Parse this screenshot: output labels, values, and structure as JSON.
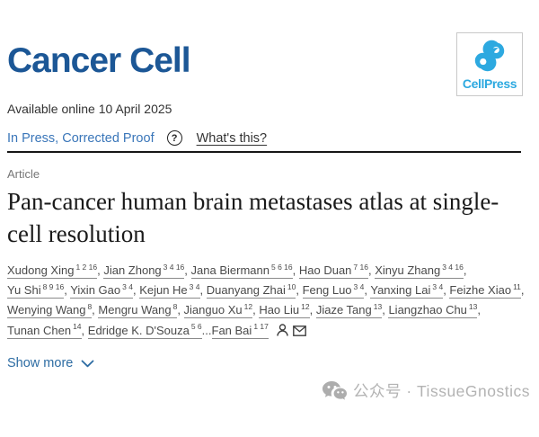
{
  "journal": {
    "name": "Cancer Cell",
    "logo_text": "CellPress"
  },
  "meta": {
    "available_online": "Available online 10 April 2025",
    "status_link": "In Press, Corrected Proof",
    "help_icon": "?",
    "whats_this": "What's this?"
  },
  "article": {
    "type_label": "Article",
    "title": "Pan-cancer human brain metastases atlas at single-cell resolution"
  },
  "authors": {
    "list": [
      {
        "name": "Xudong Xing",
        "sup": "1 2 16",
        "sep": ", "
      },
      {
        "name": "Jian Zhong",
        "sup": "3 4 16",
        "sep": ", "
      },
      {
        "name": "Jana Biermann",
        "sup": "5 6 16",
        "sep": ", "
      },
      {
        "name": "Hao Duan",
        "sup": "7 16",
        "sep": ", "
      },
      {
        "name": "Xinyu Zhang",
        "sup": "3 4 16",
        "sep": ", "
      },
      {
        "name": "Yu Shi",
        "sup": "8 9 16",
        "sep": ", "
      },
      {
        "name": "Yixin Gao",
        "sup": "3 4",
        "sep": ", "
      },
      {
        "name": "Kejun He",
        "sup": "3 4",
        "sep": ", "
      },
      {
        "name": "Duanyang Zhai",
        "sup": "10",
        "sep": ", "
      },
      {
        "name": "Feng Luo",
        "sup": "3 4",
        "sep": ", "
      },
      {
        "name": "Yanxing Lai",
        "sup": "3 4",
        "sep": ", "
      },
      {
        "name": "Feizhe Xiao",
        "sup": "11",
        "sep": ", "
      },
      {
        "name": "Wenying Wang",
        "sup": "8",
        "sep": ", "
      },
      {
        "name": "Mengru Wang",
        "sup": "8",
        "sep": ", "
      },
      {
        "name": "Jianguo Xu",
        "sup": "12",
        "sep": ", "
      },
      {
        "name": "Hao Liu",
        "sup": "12",
        "sep": ", "
      },
      {
        "name": "Jiaze Tang",
        "sup": "13",
        "sep": ", "
      },
      {
        "name": "Liangzhao Chu",
        "sup": "13",
        "sep": ", "
      },
      {
        "name": "Tunan Chen",
        "sup": "14",
        "sep": ", "
      },
      {
        "name": "Edridge K. D'Souza",
        "sup": "5 6",
        "sep": "..."
      },
      {
        "name": "Fan Bai",
        "sup": "1 17",
        "sep": ""
      }
    ]
  },
  "actions": {
    "show_more": "Show more"
  },
  "watermark": {
    "text": "公众号 · TissueGnostics"
  },
  "colors": {
    "journal_navy": "#1c5796",
    "cellpress_blue": "#2da9e0",
    "status_link_blue": "#3a76b9",
    "show_more_blue": "#2d6ca3",
    "watermark_gray": "#b3b3b3"
  }
}
